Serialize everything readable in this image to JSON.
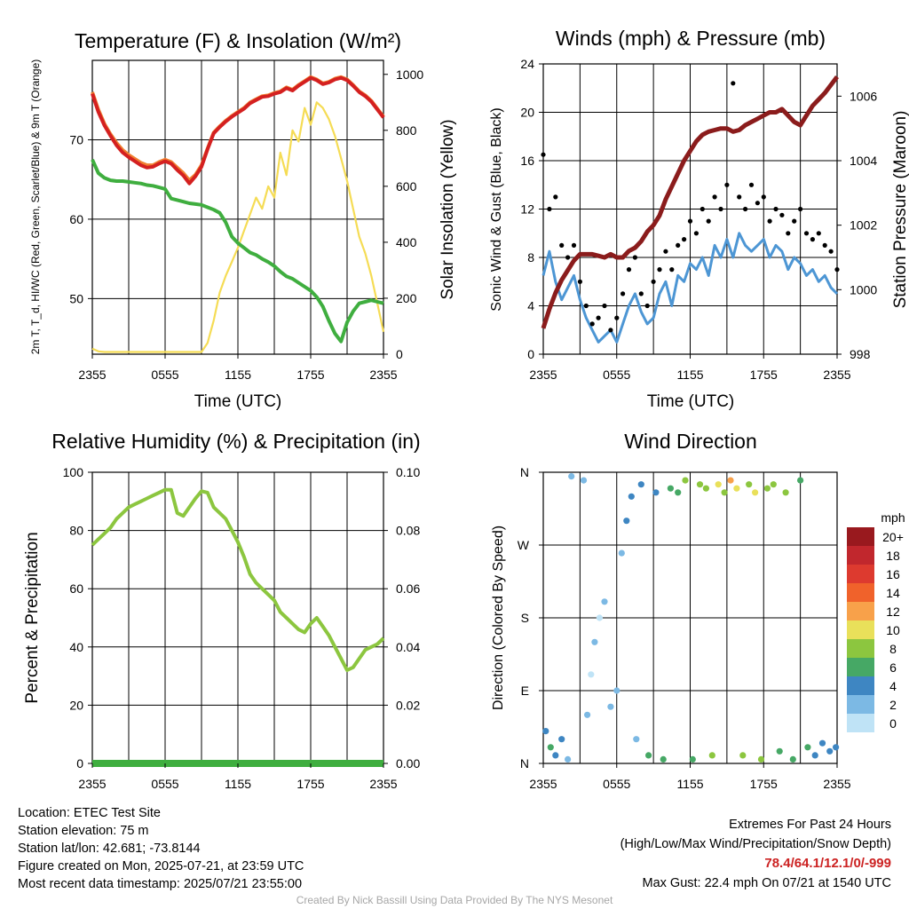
{
  "chart_data": [
    {
      "type": "line",
      "title": "Temperature (F) & Insolation (W/m²)",
      "ylabel": "2m T, T_d, HI/WC (Red, Green, Scarlet/Blue) & 9m T (Orange)",
      "y2label": "Solar Insolation (Yellow)",
      "xlabel": "Time (UTC)",
      "x_ticks": [
        "2355",
        "0555",
        "1155",
        "1755",
        "2355"
      ],
      "y_ticks": [
        50,
        60,
        70
      ],
      "y2_ticks": [
        0,
        200,
        400,
        600,
        800,
        1000
      ],
      "ylim": [
        43,
        80
      ],
      "y2lim": [
        0,
        1050
      ],
      "x_hours": [
        0,
        0.5,
        1,
        1.5,
        2,
        2.5,
        3,
        3.5,
        4,
        4.5,
        5,
        5.5,
        6,
        6.5,
        7,
        7.5,
        8,
        8.5,
        9,
        9.5,
        10,
        10.5,
        11,
        11.5,
        12,
        12.5,
        13,
        13.5,
        14,
        14.5,
        15,
        15.5,
        16,
        16.5,
        17,
        17.5,
        18,
        18.5,
        19,
        19.5,
        20,
        20.5,
        21,
        21.5,
        22,
        22.5,
        23,
        23.5,
        24
      ],
      "series": [
        {
          "color": "#d42020",
          "values": [
            75.8,
            73.5,
            71.8,
            70.5,
            69.3,
            68.4,
            67.8,
            67.3,
            66.8,
            66.5,
            66.6,
            67.0,
            67.3,
            67.0,
            66.2,
            65.5,
            64.5,
            65.4,
            66.6,
            68.8,
            70.8,
            71.6,
            72.3,
            72.9,
            73.4,
            73.9,
            74.6,
            75.0,
            75.4,
            75.5,
            75.8,
            76.0,
            76.5,
            76.2,
            76.8,
            77.3,
            77.8,
            77.5,
            77.0,
            77.2,
            77.6,
            77.8,
            77.5,
            76.8,
            76.0,
            75.5,
            74.8,
            73.8,
            72.8
          ]
        },
        {
          "color": "#f08030",
          "values": [
            76.0,
            73.8,
            72.0,
            70.7,
            69.6,
            68.7,
            68.1,
            67.6,
            67.1,
            66.8,
            66.8,
            67.2,
            67.5,
            67.2,
            66.5,
            65.8,
            64.9,
            65.6,
            66.8,
            68.9,
            70.9,
            71.7,
            72.4,
            73.0,
            73.5,
            74.0,
            74.7,
            75.1,
            75.5,
            75.6,
            75.9,
            76.1,
            76.6,
            76.3,
            76.9,
            77.4,
            77.9,
            77.6,
            77.1,
            77.3,
            77.7,
            77.9,
            77.6,
            76.9,
            76.1,
            75.6,
            74.9,
            73.9,
            72.9
          ]
        },
        {
          "color": "#3fae3f",
          "values": [
            67.5,
            65.8,
            65.2,
            64.9,
            64.8,
            64.8,
            64.7,
            64.6,
            64.5,
            64.3,
            64.2,
            64.0,
            63.8,
            62.6,
            62.4,
            62.2,
            62.0,
            61.9,
            61.8,
            61.5,
            61.2,
            60.8,
            59.6,
            57.8,
            57.0,
            56.4,
            55.8,
            55.5,
            55.0,
            54.6,
            54.1,
            53.4,
            52.8,
            52.5,
            52.0,
            51.5,
            51.0,
            50.2,
            49.0,
            47.2,
            45.6,
            44.6,
            47.0,
            48.4,
            49.4,
            49.6,
            49.8,
            49.6,
            49.4
          ]
        },
        {
          "color": "#f5dc55",
          "values": [
            20,
            10,
            8,
            8,
            8,
            8,
            8,
            8,
            8,
            8,
            8,
            8,
            8,
            8,
            8,
            8,
            8,
            8,
            8,
            40,
            120,
            220,
            280,
            330,
            380,
            440,
            500,
            560,
            520,
            600,
            560,
            720,
            640,
            800,
            760,
            880,
            820,
            900,
            880,
            840,
            780,
            700,
            620,
            520,
            420,
            360,
            280,
            180,
            80
          ]
        }
      ]
    },
    {
      "type": "line",
      "title": "Winds (mph) & Pressure (mb)",
      "ylabel": "Sonic Wind & Gust (Blue, Black)",
      "y2label": "Station Pressure (Maroon)",
      "xlabel": "Time (UTC)",
      "x_ticks": [
        "2355",
        "0555",
        "1155",
        "1755",
        "2355"
      ],
      "y_ticks": [
        0,
        4,
        8,
        12,
        16,
        20,
        24
      ],
      "y2_ticks": [
        998,
        1000,
        1002,
        1004,
        1006
      ],
      "ylim": [
        0,
        24
      ],
      "y2lim": [
        998,
        1007
      ],
      "x_hours": [
        0,
        0.5,
        1,
        1.5,
        2,
        2.5,
        3,
        3.5,
        4,
        4.5,
        5,
        5.5,
        6,
        6.5,
        7,
        7.5,
        8,
        8.5,
        9,
        9.5,
        10,
        10.5,
        11,
        11.5,
        12,
        12.5,
        13,
        13.5,
        14,
        14.5,
        15,
        15.5,
        16,
        16.5,
        17,
        17.5,
        18,
        18.5,
        19,
        19.5,
        20,
        20.5,
        21,
        21.5,
        22,
        22.5,
        23,
        23.5,
        24
      ],
      "series": [
        {
          "color": "#4d96d4",
          "values": [
            6.5,
            8.5,
            6,
            4.5,
            5.5,
            6.5,
            4.5,
            3,
            2,
            1,
            1.5,
            2,
            1,
            2.5,
            4,
            5,
            3.5,
            2.5,
            3,
            5,
            6,
            4,
            6.5,
            6,
            7.5,
            7,
            8,
            6.5,
            9,
            8,
            9.5,
            8,
            10,
            9,
            8.5,
            9,
            9.5,
            8,
            9,
            8.5,
            7,
            8,
            7.5,
            6.5,
            7,
            6,
            6.5,
            5.5,
            5
          ]
        },
        {
          "color": "#8b1c1c",
          "values": [
            998.8,
            999.4,
            999.9,
            1000.3,
            1000.6,
            1000.9,
            1001.1,
            1001.1,
            1001.1,
            1001.05,
            1001.0,
            1001.1,
            1001.0,
            1001.0,
            1001.2,
            1001.3,
            1001.5,
            1001.8,
            1002.0,
            1002.3,
            1002.8,
            1003.2,
            1003.6,
            1004.0,
            1004.3,
            1004.6,
            1004.8,
            1004.9,
            1004.95,
            1005.0,
            1005.0,
            1004.9,
            1004.95,
            1005.1,
            1005.2,
            1005.3,
            1005.4,
            1005.5,
            1005.5,
            1005.6,
            1005.4,
            1005.2,
            1005.1,
            1005.4,
            1005.7,
            1005.9,
            1006.1,
            1006.35,
            1006.6
          ]
        }
      ],
      "gusts": [
        {
          "x": 0,
          "y": 16.5
        },
        {
          "x": 0.5,
          "y": 12
        },
        {
          "x": 1,
          "y": 13
        },
        {
          "x": 1.5,
          "y": 9
        },
        {
          "x": 2,
          "y": 8
        },
        {
          "x": 2.5,
          "y": 9
        },
        {
          "x": 3,
          "y": 6
        },
        {
          "x": 3.5,
          "y": 4
        },
        {
          "x": 4,
          "y": 2.5
        },
        {
          "x": 4.5,
          "y": 3
        },
        {
          "x": 5,
          "y": 4
        },
        {
          "x": 5.5,
          "y": 2
        },
        {
          "x": 6,
          "y": 3
        },
        {
          "x": 6.5,
          "y": 5
        },
        {
          "x": 7,
          "y": 7
        },
        {
          "x": 7.5,
          "y": 8
        },
        {
          "x": 8,
          "y": 5
        },
        {
          "x": 8.5,
          "y": 4
        },
        {
          "x": 9,
          "y": 6
        },
        {
          "x": 9.5,
          "y": 7
        },
        {
          "x": 10,
          "y": 8.5
        },
        {
          "x": 10.5,
          "y": 7
        },
        {
          "x": 11,
          "y": 9
        },
        {
          "x": 11.5,
          "y": 9.5
        },
        {
          "x": 12,
          "y": 11
        },
        {
          "x": 12.5,
          "y": 10
        },
        {
          "x": 13,
          "y": 12
        },
        {
          "x": 13.5,
          "y": 11
        },
        {
          "x": 14,
          "y": 13
        },
        {
          "x": 14.5,
          "y": 12
        },
        {
          "x": 15,
          "y": 14
        },
        {
          "x": 15.5,
          "y": 22.4
        },
        {
          "x": 16,
          "y": 13
        },
        {
          "x": 16.5,
          "y": 12
        },
        {
          "x": 17,
          "y": 14
        },
        {
          "x": 17.5,
          "y": 12.5
        },
        {
          "x": 18,
          "y": 13
        },
        {
          "x": 18.5,
          "y": 11
        },
        {
          "x": 19,
          "y": 12
        },
        {
          "x": 19.5,
          "y": 11.5
        },
        {
          "x": 20,
          "y": 10
        },
        {
          "x": 20.5,
          "y": 11
        },
        {
          "x": 21,
          "y": 12
        },
        {
          "x": 21.5,
          "y": 10
        },
        {
          "x": 22,
          "y": 9.5
        },
        {
          "x": 22.5,
          "y": 10
        },
        {
          "x": 23,
          "y": 9
        },
        {
          "x": 23.5,
          "y": 8.5
        },
        {
          "x": 24,
          "y": 7
        }
      ]
    },
    {
      "type": "line",
      "title": "Relative Humidity (%) & Precipitation (in)",
      "ylabel": "Percent & Precipitation",
      "x_ticks": [
        "2355",
        "0555",
        "1155",
        "1755",
        "2355"
      ],
      "y_ticks": [
        0,
        20,
        40,
        60,
        80,
        100
      ],
      "y2_ticks": [
        "0.00",
        "0.02",
        "0.04",
        "0.06",
        "0.08",
        "0.10"
      ],
      "ylim": [
        0,
        100
      ],
      "y2lim": [
        0,
        0.1
      ],
      "x_hours": [
        0,
        0.5,
        1,
        1.5,
        2,
        2.5,
        3,
        3.5,
        4,
        4.5,
        5,
        5.5,
        6,
        6.5,
        7,
        7.5,
        8,
        8.5,
        9,
        9.5,
        10,
        10.5,
        11,
        11.5,
        12,
        12.5,
        13,
        13.5,
        14,
        14.5,
        15,
        15.5,
        16,
        16.5,
        17,
        17.5,
        18,
        18.5,
        19,
        19.5,
        20,
        20.5,
        21,
        21.5,
        22,
        22.5,
        23,
        23.5,
        24
      ],
      "series": [
        {
          "color": "#8cc63f",
          "values": [
            75,
            77,
            79,
            81,
            84,
            86,
            88,
            89,
            90,
            91,
            92,
            93,
            94,
            94,
            86,
            85,
            88,
            91,
            93.5,
            93,
            88,
            86,
            84,
            80,
            76,
            71,
            65,
            62,
            60,
            58,
            56,
            52,
            50,
            48,
            46,
            45,
            48,
            50,
            47,
            44,
            40,
            36,
            32,
            33,
            36,
            39,
            40,
            41,
            43
          ]
        },
        {
          "color": "#3fae3f",
          "values": [
            0,
            0,
            0,
            0,
            0,
            0,
            0,
            0,
            0,
            0,
            0,
            0,
            0,
            0,
            0,
            0,
            0,
            0,
            0,
            0,
            0,
            0,
            0,
            0,
            0,
            0,
            0,
            0,
            0,
            0,
            0,
            0,
            0,
            0,
            0,
            0,
            0,
            0,
            0,
            0,
            0,
            0,
            0,
            0,
            0,
            0,
            0,
            0,
            0
          ]
        }
      ]
    },
    {
      "type": "scatter",
      "title": "Wind Direction",
      "ylabel": "Direction (Colored By Speed)",
      "x_ticks": [
        "2355",
        "0555",
        "1155",
        "1755",
        "2355"
      ],
      "y_ticks": [
        "N",
        "E",
        "S",
        "W",
        "N"
      ],
      "ylim": [
        0,
        360
      ],
      "colorbar": {
        "unit": "mph",
        "labels": [
          "20+",
          "18",
          "16",
          "14",
          "12",
          "10",
          "8",
          "6",
          "4",
          "2",
          "0"
        ],
        "colors": [
          "#99191e",
          "#c1272d",
          "#dd3a2f",
          "#f0622b",
          "#f8a14a",
          "#e9e05a",
          "#8cc63f",
          "#46a865",
          "#3e86c2",
          "#7cb9e4",
          "#bfe3f6"
        ]
      },
      "points": [
        {
          "x": 0.2,
          "y": 40,
          "s": 4
        },
        {
          "x": 0.6,
          "y": 20,
          "s": 6
        },
        {
          "x": 1.0,
          "y": 10,
          "s": 5
        },
        {
          "x": 1.5,
          "y": 30,
          "s": 4
        },
        {
          "x": 2.0,
          "y": 5,
          "s": 3
        },
        {
          "x": 2.3,
          "y": 355,
          "s": 3
        },
        {
          "x": 3.3,
          "y": 350,
          "s": 2
        },
        {
          "x": 3.6,
          "y": 60,
          "s": 2
        },
        {
          "x": 3.9,
          "y": 110,
          "s": 1
        },
        {
          "x": 4.2,
          "y": 150,
          "s": 2
        },
        {
          "x": 4.6,
          "y": 180,
          "s": 1
        },
        {
          "x": 5.0,
          "y": 200,
          "s": 2
        },
        {
          "x": 5.5,
          "y": 70,
          "s": 3
        },
        {
          "x": 6.0,
          "y": 90,
          "s": 2
        },
        {
          "x": 6.4,
          "y": 260,
          "s": 3
        },
        {
          "x": 6.8,
          "y": 300,
          "s": 4
        },
        {
          "x": 7.2,
          "y": 330,
          "s": 4
        },
        {
          "x": 7.6,
          "y": 30,
          "s": 3
        },
        {
          "x": 8.0,
          "y": 345,
          "s": 5
        },
        {
          "x": 8.6,
          "y": 10,
          "s": 7
        },
        {
          "x": 9.2,
          "y": 335,
          "s": 4
        },
        {
          "x": 9.8,
          "y": 5,
          "s": 6
        },
        {
          "x": 10.4,
          "y": 340,
          "s": 6
        },
        {
          "x": 11.0,
          "y": 335,
          "s": 7
        },
        {
          "x": 11.6,
          "y": 350,
          "s": 9
        },
        {
          "x": 12.2,
          "y": 5,
          "s": 7
        },
        {
          "x": 12.8,
          "y": 345,
          "s": 8
        },
        {
          "x": 13.3,
          "y": 340,
          "s": 9
        },
        {
          "x": 13.8,
          "y": 10,
          "s": 8
        },
        {
          "x": 14.3,
          "y": 345,
          "s": 10
        },
        {
          "x": 14.8,
          "y": 335,
          "s": 9
        },
        {
          "x": 15.3,
          "y": 350,
          "s": 12
        },
        {
          "x": 15.8,
          "y": 340,
          "s": 11
        },
        {
          "x": 16.3,
          "y": 10,
          "s": 9
        },
        {
          "x": 16.8,
          "y": 345,
          "s": 8
        },
        {
          "x": 17.3,
          "y": 335,
          "s": 10
        },
        {
          "x": 17.8,
          "y": 5,
          "s": 8
        },
        {
          "x": 18.3,
          "y": 340,
          "s": 9
        },
        {
          "x": 18.8,
          "y": 345,
          "s": 8
        },
        {
          "x": 19.3,
          "y": 15,
          "s": 7
        },
        {
          "x": 19.8,
          "y": 335,
          "s": 8
        },
        {
          "x": 20.4,
          "y": 5,
          "s": 7
        },
        {
          "x": 21.0,
          "y": 350,
          "s": 6
        },
        {
          "x": 21.6,
          "y": 20,
          "s": 6
        },
        {
          "x": 22.2,
          "y": 10,
          "s": 5
        },
        {
          "x": 22.8,
          "y": 25,
          "s": 5
        },
        {
          "x": 23.4,
          "y": 15,
          "s": 4
        },
        {
          "x": 23.9,
          "y": 20,
          "s": 4
        }
      ]
    }
  ],
  "info": {
    "location": "Location: ETEC Test Site",
    "elevation": "Station elevation: 75 m",
    "latlon": "Station lat/lon: 42.681; -73.8144",
    "created": "Figure created on Mon, 2025-07-21, at 23:59 UTC",
    "recent": "Most recent data timestamp: 2025/07/21 23:55:00"
  },
  "extremes": {
    "heading": "Extremes For Past 24 Hours",
    "subheading": "(High/Low/Max Wind/Precipitation/Snow Depth)",
    "values": "78.4/64.1/12.1/0/-999",
    "max_gust": "Max Gust: 22.4 mph On 07/21 at 1540 UTC"
  },
  "credit": "Created By Nick Bassill Using Data Provided By The NYS Mesonet"
}
